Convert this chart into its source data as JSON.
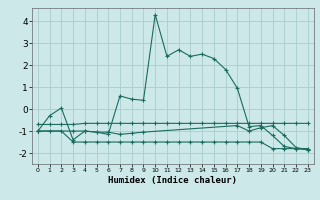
{
  "xlabel": "Humidex (Indice chaleur)",
  "bg_color": "#cce8e8",
  "grid_color": "#aacccc",
  "line_color": "#1a6b5e",
  "xlim": [
    -0.5,
    23.5
  ],
  "ylim": [
    -2.5,
    4.6
  ],
  "xticks": [
    0,
    1,
    2,
    3,
    4,
    5,
    6,
    7,
    8,
    9,
    10,
    11,
    12,
    13,
    14,
    15,
    16,
    17,
    18,
    19,
    20,
    21,
    22,
    23
  ],
  "yticks": [
    -2,
    -1,
    0,
    1,
    2,
    3,
    4
  ],
  "series1_x": [
    0,
    1,
    2,
    3,
    4,
    5,
    6,
    7,
    8,
    9,
    10,
    11,
    12,
    13,
    14,
    15,
    16,
    17,
    18,
    19,
    20,
    21,
    22,
    23
  ],
  "series1_y": [
    -1.0,
    -0.3,
    0.05,
    -1.4,
    -1.0,
    -1.05,
    -1.15,
    0.6,
    0.45,
    0.4,
    4.3,
    2.4,
    2.7,
    2.4,
    2.5,
    2.3,
    1.8,
    0.95,
    -0.8,
    -0.75,
    -1.2,
    -1.7,
    -1.8,
    -1.85
  ],
  "series2_x": [
    0,
    1,
    2,
    3,
    4,
    5,
    6,
    7,
    8,
    9,
    10,
    11,
    12,
    13,
    14,
    15,
    16,
    17,
    18,
    19,
    20,
    21,
    22,
    23
  ],
  "series2_y": [
    -0.7,
    -0.7,
    -0.7,
    -0.7,
    -0.65,
    -0.65,
    -0.65,
    -0.65,
    -0.65,
    -0.65,
    -0.65,
    -0.65,
    -0.65,
    -0.65,
    -0.65,
    -0.65,
    -0.65,
    -0.65,
    -0.65,
    -0.65,
    -0.65,
    -0.65,
    -0.65,
    -0.65
  ],
  "series3_x": [
    0,
    1,
    2,
    3,
    4,
    5,
    6,
    7,
    8,
    9,
    10,
    11,
    12,
    13,
    14,
    15,
    16,
    17,
    18,
    19,
    20,
    21,
    22,
    23
  ],
  "series3_y": [
    -1.0,
    -1.0,
    -1.0,
    -1.5,
    -1.5,
    -1.5,
    -1.5,
    -1.5,
    -1.5,
    -1.5,
    -1.5,
    -1.5,
    -1.5,
    -1.5,
    -1.5,
    -1.5,
    -1.5,
    -1.5,
    -1.5,
    -1.5,
    -1.8,
    -1.8,
    -1.8,
    -1.8
  ],
  "series4_x": [
    0,
    3,
    4,
    5,
    6,
    7,
    8,
    9,
    17,
    18,
    19,
    20,
    21,
    22,
    23
  ],
  "series4_y": [
    -1.0,
    -1.0,
    -1.0,
    -1.05,
    -1.05,
    -1.15,
    -1.1,
    -1.05,
    -0.75,
    -1.0,
    -0.85,
    -0.75,
    -1.2,
    -1.75,
    -1.85
  ]
}
